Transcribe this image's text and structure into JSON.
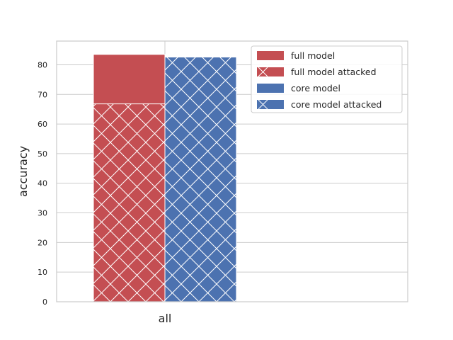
{
  "chart_data": {
    "type": "bar",
    "categories": [
      "all"
    ],
    "series": [
      {
        "name": "full model",
        "values": [
          83.5
        ],
        "color": "#c44e52",
        "hatch": false
      },
      {
        "name": "full model attacked",
        "values": [
          66.8
        ],
        "color": "#c44e52",
        "hatch": true
      },
      {
        "name": "core model",
        "values": [
          82.6
        ],
        "color": "#4c72b0",
        "hatch": false
      },
      {
        "name": "core model attacked",
        "values": [
          82.6
        ],
        "color": "#4c72b0",
        "hatch": true
      }
    ],
    "title": "",
    "xlabel": "",
    "ylabel": "accuracy",
    "ylim": [
      0,
      88
    ],
    "yticks": [
      0,
      10,
      20,
      30,
      40,
      50,
      60,
      70,
      80
    ],
    "grid": true,
    "legend_position": "upper right"
  }
}
